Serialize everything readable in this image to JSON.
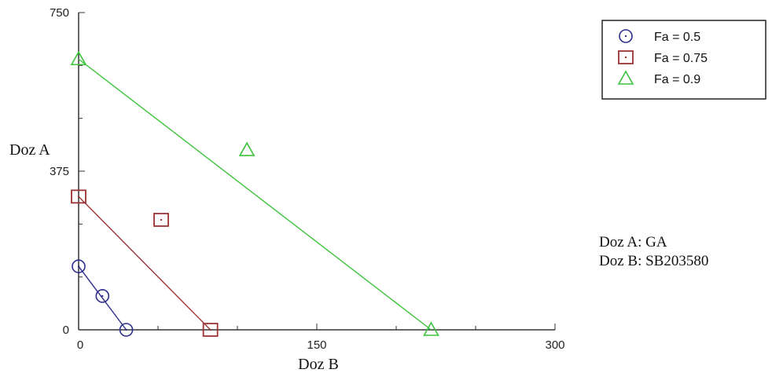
{
  "chart_data": {
    "type": "scatter",
    "xlabel": "Doz B",
    "ylabel": "Doz A",
    "xlim": [
      0,
      300
    ],
    "ylim": [
      0,
      750
    ],
    "xticks": [
      {
        "value": 0,
        "label": "0"
      },
      {
        "value": 150,
        "label": "150"
      },
      {
        "value": 300,
        "label": "300"
      }
    ],
    "yticks": [
      {
        "value": 0,
        "label": "0"
      },
      {
        "value": 375,
        "label": "375"
      },
      {
        "value": 750,
        "label": "750"
      }
    ],
    "grid": false,
    "legend_position": "top-right",
    "series": [
      {
        "name": "Fa = 0.5",
        "marker": "circle",
        "color": "#2e2e8c",
        "points": [
          [
            0,
            150
          ],
          [
            15,
            80
          ],
          [
            30,
            0
          ]
        ],
        "line": [
          [
            0,
            150
          ],
          [
            30,
            0
          ]
        ]
      },
      {
        "name": "Fa = 0.75",
        "marker": "square",
        "color": "#9b3535",
        "points": [
          [
            0,
            315
          ],
          [
            52,
            260
          ],
          [
            83,
            0
          ]
        ],
        "line": [
          [
            0,
            315
          ],
          [
            83,
            0
          ]
        ]
      },
      {
        "name": "Fa = 0.9",
        "marker": "triangle",
        "color": "#3cc43c",
        "points": [
          [
            0,
            640
          ],
          [
            106,
            425
          ],
          [
            222,
            0
          ]
        ],
        "line": [
          [
            0,
            640
          ],
          [
            222,
            0
          ]
        ]
      }
    ]
  },
  "annotations": {
    "line1": "Doz A: GA",
    "line2": "Doz B: SB203580"
  }
}
